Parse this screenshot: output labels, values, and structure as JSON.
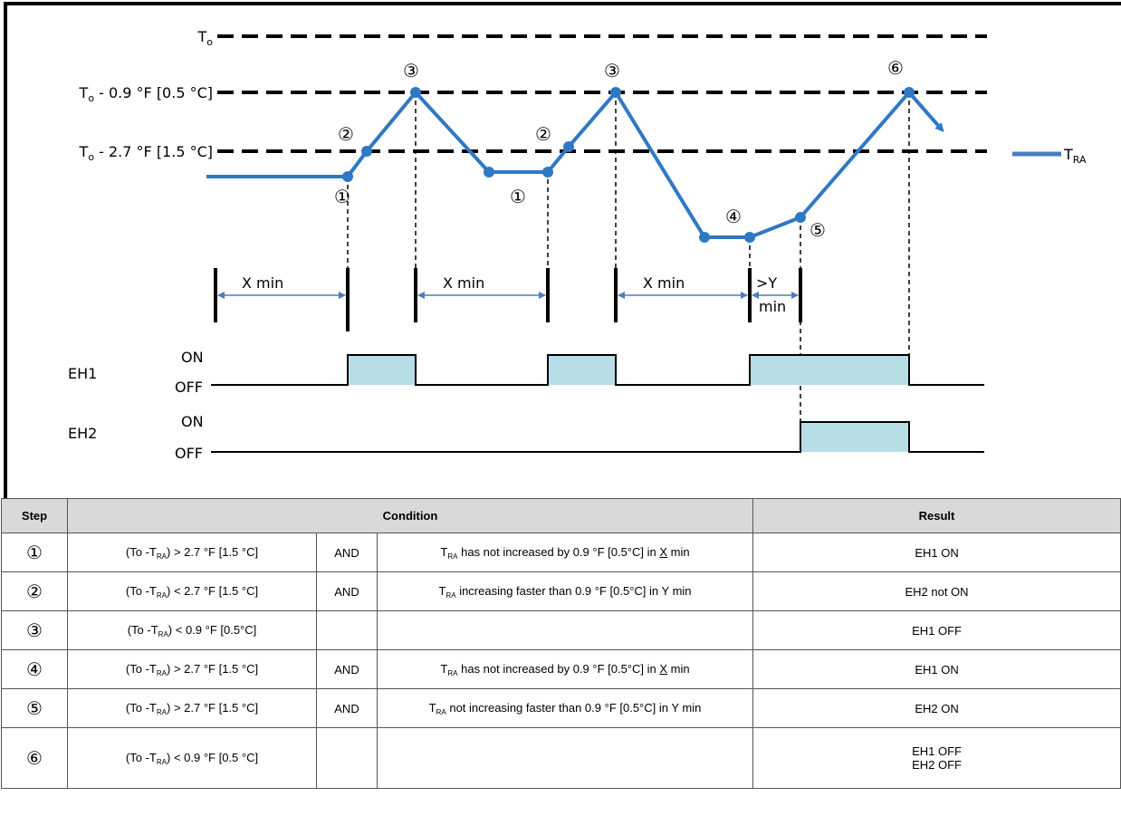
{
  "chart_data": {
    "type": "line",
    "levels": [
      {
        "key": "To",
        "label": "T",
        "sub": "o",
        "suffix": ""
      },
      {
        "key": "hi",
        "label": "T",
        "sub": "o",
        "suffix": " - 0.9 °F [0.5 °C]"
      },
      {
        "key": "lo",
        "label": "T",
        "sub": "o",
        "suffix": " - 2.7 °F [1.5 °C]"
      }
    ],
    "series": [
      {
        "name": "TRA",
        "label": "T",
        "sub": "RA",
        "color": "#2f78c4"
      }
    ],
    "step_markers": [
      "①",
      "②",
      "③",
      "①",
      "②",
      "③",
      "④",
      "⑤",
      "⑥"
    ],
    "intervals": [
      "X min",
      "X min",
      "X min",
      ">Y",
      "min"
    ],
    "signals": [
      {
        "name": "EH1",
        "on_label": "ON",
        "off_label": "OFF"
      },
      {
        "name": "EH2",
        "on_label": "ON",
        "off_label": "OFF"
      }
    ],
    "fill_color": "#b7dde6"
  },
  "table": {
    "headers": {
      "step": "Step",
      "condition": "Condition",
      "result": "Result"
    },
    "rows": [
      {
        "step": "①",
        "cond_a_pre": "(To -T",
        "cond_a_sub": "RA",
        "cond_a_post": ") > 2.7 °F [1.5 °C]",
        "op": "AND",
        "cond_b_sub": "RA",
        "cond_b_pre": " has not increased by 0.9 °F [0.5°C] in ",
        "cond_b_u": "X",
        "cond_b_post": " min",
        "result": "EH1 ON"
      },
      {
        "step": "②",
        "cond_a_pre": "(To -T",
        "cond_a_sub": "RA",
        "cond_a_post": ") < 2.7 °F [1.5 °C]",
        "op": "AND",
        "cond_b_sub": "RA",
        "cond_b_pre": " increasing faster than 0.9 °F [0.5°C] in Y min",
        "cond_b_u": "",
        "cond_b_post": "",
        "result": "EH2 not ON"
      },
      {
        "step": "③",
        "cond_a_pre": "(To -T",
        "cond_a_sub": "RA",
        "cond_a_post": ") <  0.9 °F [0.5°C]",
        "op": "",
        "cond_b_sub": "",
        "cond_b_pre": "",
        "cond_b_u": "",
        "cond_b_post": "",
        "result": "EH1 OFF"
      },
      {
        "step": "④",
        "cond_a_pre": "(To -T",
        "cond_a_sub": "RA",
        "cond_a_post": ") > 2.7 °F [1.5 °C]",
        "op": "AND",
        "cond_b_sub": "RA",
        "cond_b_pre": " has not increased by 0.9 °F [0.5°C] in ",
        "cond_b_u": "X",
        "cond_b_post": " min",
        "result": "EH1 ON"
      },
      {
        "step": "⑤",
        "cond_a_pre": "(To -T",
        "cond_a_sub": "RA",
        "cond_a_post": ") > 2.7 °F [1.5 °C]",
        "op": "AND",
        "cond_b_sub": "RA",
        "cond_b_pre": " not increasing faster than 0.9 °F [0.5°C] in Y min",
        "cond_b_u": "",
        "cond_b_post": "",
        "result": "EH2 ON"
      },
      {
        "step": "⑥",
        "cond_a_pre": "(To -T",
        "cond_a_sub": "RA",
        "cond_a_post": ") < 0.9 °F [0.5 °C]",
        "op": "",
        "cond_b_sub": "",
        "cond_b_pre": "",
        "cond_b_u": "",
        "cond_b_post": "",
        "result": "EH1 OFF\nEH2 OFF"
      }
    ]
  }
}
